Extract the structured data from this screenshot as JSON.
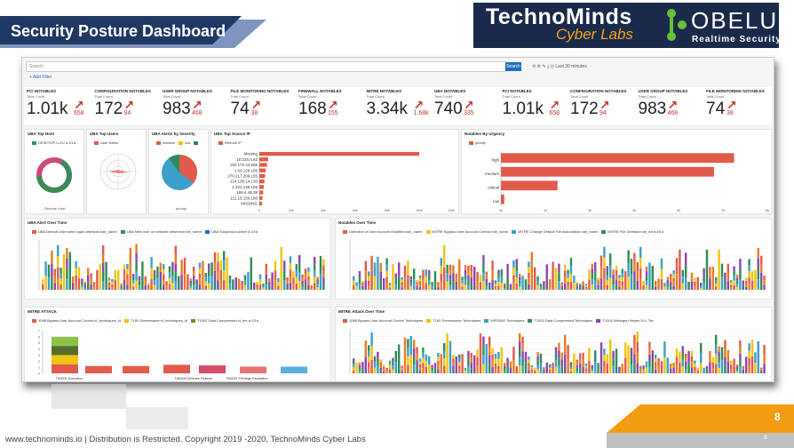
{
  "slide": {
    "title": "Security Posture Dashboard",
    "footer": "www.technominds.io | Distribution is Restricted. Copyright 2019 -2020, TechnoMinds Cyber Labs",
    "page_number": "8",
    "page_number_small": "8"
  },
  "brand": {
    "technominds": "TechnoMinds",
    "cyber_labs": "Cyber Labs",
    "obelus": "OBELUS",
    "obelus_tag": "Realtime Security"
  },
  "dashboard": {
    "search_placeholder": "Search",
    "search_button": "Search",
    "time_label": "Last 30 minutes",
    "add_filter": "+ Add Filter",
    "metrics": [
      {
        "label": "PCI NOTABLES",
        "sub": "Total Count",
        "value": "1.01k",
        "delta": "658"
      },
      {
        "label": "CONFIGURATION NOTABLES",
        "sub": "Total Count",
        "value": "172",
        "delta": "94"
      },
      {
        "label": "USER GROUP NOTABLES",
        "sub": "Total Count",
        "value": "983",
        "delta": "468"
      },
      {
        "label": "FILE MONITORING NOTABLES",
        "sub": "Total Count",
        "value": "74",
        "delta": "38"
      },
      {
        "label": "FIREWALL NOTABLES",
        "sub": "Total Count",
        "value": "168",
        "delta": "155"
      },
      {
        "label": "MITRE NOTABLES",
        "sub": "Total Count",
        "value": "3.34k",
        "delta": "1.68k"
      },
      {
        "label": "UBA NOTABLES",
        "sub": "Total Count",
        "value": "740",
        "delta": "335"
      },
      {
        "label": "PCI NOTABLES",
        "sub": "Total Count",
        "value": "1.01k",
        "delta": "658"
      },
      {
        "label": "CONFIGURATION NOTABLES",
        "sub": "Total Count",
        "value": "172",
        "delta": "94"
      },
      {
        "label": "USER GROUP NOTABLES",
        "sub": "Total Count",
        "value": "983",
        "delta": "468"
      },
      {
        "label": "FILE MONITORING NOTABLES",
        "sub": "Total Count",
        "value": "74",
        "delta": "38"
      }
    ],
    "panels": {
      "uba_host": {
        "title": "UBA Top Host",
        "legend": "DESKTOP-LLHJ",
        "xlabel": "Remote Host"
      },
      "uba_users": {
        "title": "UBA Top Users",
        "legend": "User Name"
      },
      "uba_severity": {
        "title": "UBA Alerts by Severity",
        "legend": [
          "medium",
          "low",
          "high"
        ],
        "xlabel": "priority"
      },
      "uba_source": {
        "title": "UBA Top Source IP",
        "legend": "Remote IP"
      },
      "urgency": {
        "title": "Notables By Urgency",
        "legend": "priority"
      },
      "uba_time": {
        "title": "UBA Alert Over Time",
        "legend": [
          "UBA Default Username logon attempts:rule_name",
          "UBA New user on network observed:rule_name",
          "UBA Suspicious activit"
        ]
      },
      "notables_time": {
        "title": "Notables Over Time",
        "legend": [
          "Detection of User Account Modified:rule_name",
          "MITRE Bypass User Account Control:rule_name",
          "MITRE Change Default File Association:rule_name",
          "MITRE File Deletion:rule_na"
        ]
      },
      "mitre": {
        "title": "MITRE ATTACK",
        "legend": [
          "1088 Bypass User Account Control:cf_techniques_id",
          "T160 Screensaver:cf_techniques_id",
          "T1002 Data Compressed cf_tec"
        ]
      },
      "mitre_time": {
        "title": "MITRE Attack Over Time",
        "legend": [
          "1088 Bypass User Account Control Techniques",
          "T160 Screensaver Techniques",
          "MISSING Techniques",
          "T1002 Data Compressed Techniques",
          "T1004 Winlogon Helper DLL Tec"
        ]
      }
    }
  },
  "chart_data": [
    {
      "type": "pie",
      "title": "UBA Top Host",
      "categories": [
        "DESKTOP-LLHJ"
      ],
      "values": [
        100
      ]
    },
    {
      "type": "pie",
      "title": "UBA Alerts by Severity",
      "categories": [
        "medium",
        "low",
        "high"
      ],
      "values": [
        62,
        28,
        10
      ]
    },
    {
      "type": "bar",
      "title": "UBA Top Source IP",
      "categories": [
        "Missing",
        "10.226.0.61",
        "192.172.44.206",
        "1.63.128.156",
        "270.217.209.155",
        "114.136.14.130",
        "1.221.148.106",
        "169.4.49.38",
        "111.15.150.180",
        "MISSING"
      ],
      "values": [
        1000,
        55,
        48,
        40,
        36,
        32,
        28,
        24,
        20,
        16
      ],
      "ylim": [
        0,
        1200
      ]
    },
    {
      "type": "bar",
      "title": "Notables By Urgency",
      "categories": [
        "high",
        "medium",
        "critical",
        "low"
      ],
      "values": [
        7000,
        6400,
        1700,
        100
      ],
      "ylim": [
        0,
        8000
      ]
    },
    {
      "type": "bar",
      "title": "MITRE ATTACK",
      "categories": [
        "TA0005 Execution",
        "TA0005 Defense Evasion",
        "TA0004 Privilege Escalation"
      ],
      "values": [
        6,
        3,
        3
      ],
      "ylim": [
        0,
        7
      ]
    }
  ]
}
